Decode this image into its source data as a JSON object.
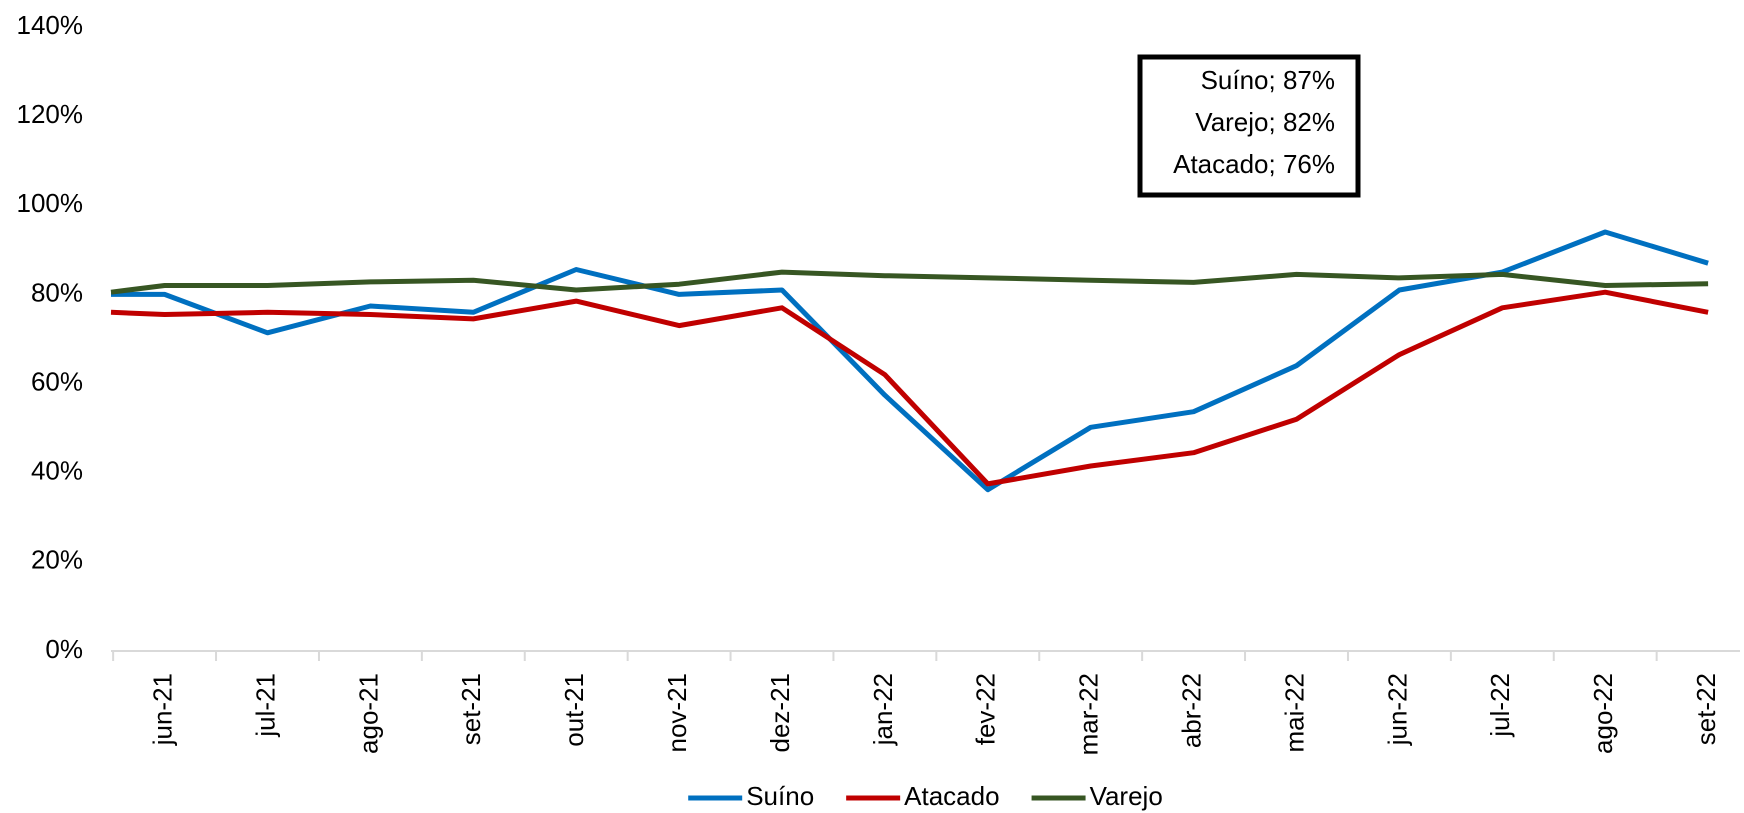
{
  "chart_data": {
    "type": "line",
    "categories": [
      null,
      "jun-21",
      "jul-21",
      "ago-21",
      "set-21",
      "out-21",
      "nov-21",
      "dez-21",
      "jan-22",
      "fev-22",
      "mar-22",
      "abr-22",
      "mai-22",
      "jun-22",
      "jul-22",
      "ago-22",
      "set-22"
    ],
    "series": [
      {
        "name": "Suíno",
        "color": "#0070c0",
        "values": [
          80,
          80,
          71.4,
          77.4,
          76,
          85.6,
          80,
          81,
          57.4,
          36.2,
          50.2,
          53.7,
          64,
          81,
          85,
          94,
          87
        ]
      },
      {
        "name": "Atacado",
        "color": "#c00000",
        "values": [
          76,
          75.5,
          76,
          75.5,
          74.5,
          78.5,
          73,
          77,
          62,
          37.5,
          41.5,
          44.5,
          52,
          66.5,
          77,
          80.5,
          76
        ]
      },
      {
        "name": "Varejo",
        "color": "#375623",
        "values": [
          80.5,
          82,
          82,
          82.8,
          83.2,
          81,
          82.3,
          85,
          84.2,
          83.7,
          83.2,
          82.7,
          84.5,
          83.7,
          84.5,
          82,
          82.4
        ]
      }
    ],
    "ylim": [
      0,
      140
    ],
    "yticks": [
      {
        "value": 0,
        "label": "0%"
      },
      {
        "value": 20,
        "label": "20%"
      },
      {
        "value": 40,
        "label": "40%"
      },
      {
        "value": 60,
        "label": "60%"
      },
      {
        "value": 80,
        "label": "80%"
      },
      {
        "value": 100,
        "label": "100%"
      },
      {
        "value": 120,
        "label": "120%"
      },
      {
        "value": 140,
        "label": "140%"
      }
    ],
    "annotations": [
      "Suíno; 87%",
      "Varejo; 82%",
      "Atacado; 76%"
    ],
    "legend": "bottom",
    "grid": false
  }
}
